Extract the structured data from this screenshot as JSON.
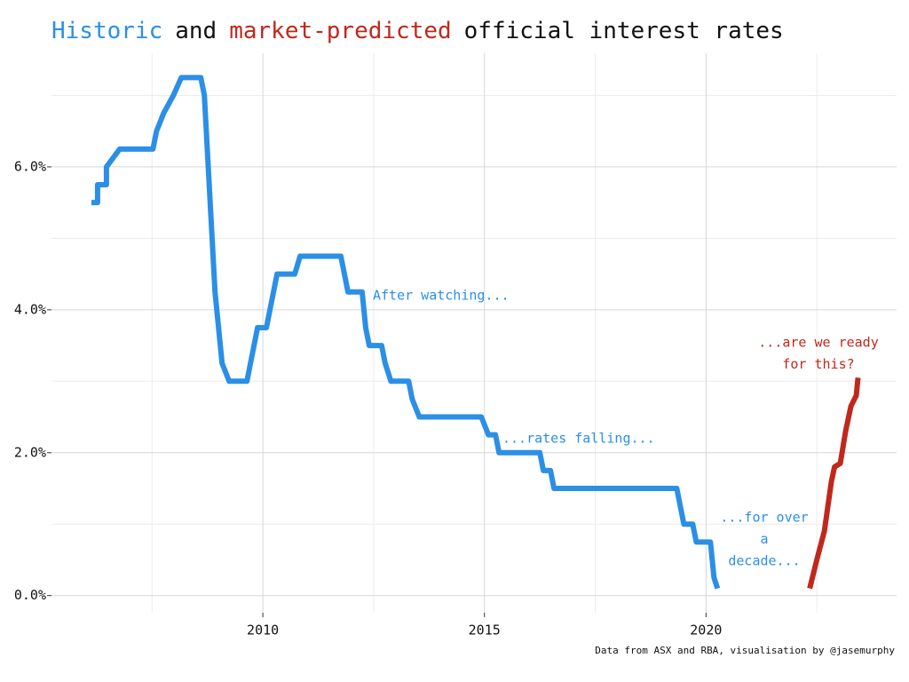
{
  "chart_data": {
    "type": "line",
    "title_parts": [
      "Historic",
      "and",
      "market-predicted",
      "official interest rates"
    ],
    "source": "Data from ASX and RBA, visualisation by @jasemurphy",
    "xlim": [
      2005.23,
      2024.3
    ],
    "ylim": [
      -0.24,
      7.59
    ],
    "xticks": [
      2010,
      2015,
      2020
    ],
    "yticks": [
      {
        "value": 0,
        "label": "0.0%"
      },
      {
        "value": 2,
        "label": "2.0%"
      },
      {
        "value": 4,
        "label": "4.0%"
      },
      {
        "value": 6,
        "label": "6.0%"
      }
    ],
    "grid": true,
    "minor_grid": true,
    "series": [
      {
        "name": "Historic",
        "color": "#2b8fe6",
        "x": [
          2006.13,
          2006.27,
          2006.27,
          2006.47,
          2006.47,
          2006.77,
          2007.52,
          2007.6,
          2007.76,
          2007.98,
          2008.16,
          2008.6,
          2008.68,
          2008.92,
          2009.08,
          2009.24,
          2009.64,
          2009.88,
          2010.08,
          2010.32,
          2010.72,
          2010.84,
          2011.76,
          2011.92,
          2012.24,
          2012.32,
          2012.4,
          2012.68,
          2012.76,
          2012.89,
          2013.29,
          2013.37,
          2013.53,
          2014.93,
          2015.09,
          2015.25,
          2015.33,
          2016.25,
          2016.33,
          2016.49,
          2016.57,
          2019.34,
          2019.5,
          2019.7,
          2019.78,
          2020.1,
          2020.18,
          2020.26
        ],
        "values": [
          5.5,
          5.5,
          5.75,
          5.75,
          6.0,
          6.25,
          6.25,
          6.5,
          6.75,
          7.0,
          7.25,
          7.25,
          7.0,
          4.25,
          3.25,
          3.0,
          3.0,
          3.75,
          3.75,
          4.5,
          4.5,
          4.75,
          4.75,
          4.25,
          4.25,
          3.75,
          3.5,
          3.5,
          3.25,
          3.0,
          3.0,
          2.75,
          2.5,
          2.5,
          2.25,
          2.25,
          2.0,
          2.0,
          1.75,
          1.75,
          1.5,
          1.5,
          1.0,
          1.0,
          0.75,
          0.75,
          0.25,
          0.1
        ]
      },
      {
        "name": "market-predicted",
        "color": "#c0281c",
        "x": [
          2022.34,
          2022.5,
          2022.67,
          2022.83,
          2022.9,
          2023.03,
          2023.15,
          2023.27,
          2023.39,
          2023.43
        ],
        "values": [
          0.1,
          0.5,
          0.9,
          1.6,
          1.8,
          1.85,
          2.3,
          2.65,
          2.8,
          3.05
        ]
      }
    ],
    "annotations": [
      {
        "lines": [
          "After watching..."
        ]
      },
      {
        "lines": [
          "...rates falling..."
        ]
      },
      {
        "lines": [
          "...for over",
          "a",
          "decade..."
        ]
      },
      {
        "lines": [
          "...are we ready",
          "for this?"
        ]
      }
    ]
  }
}
